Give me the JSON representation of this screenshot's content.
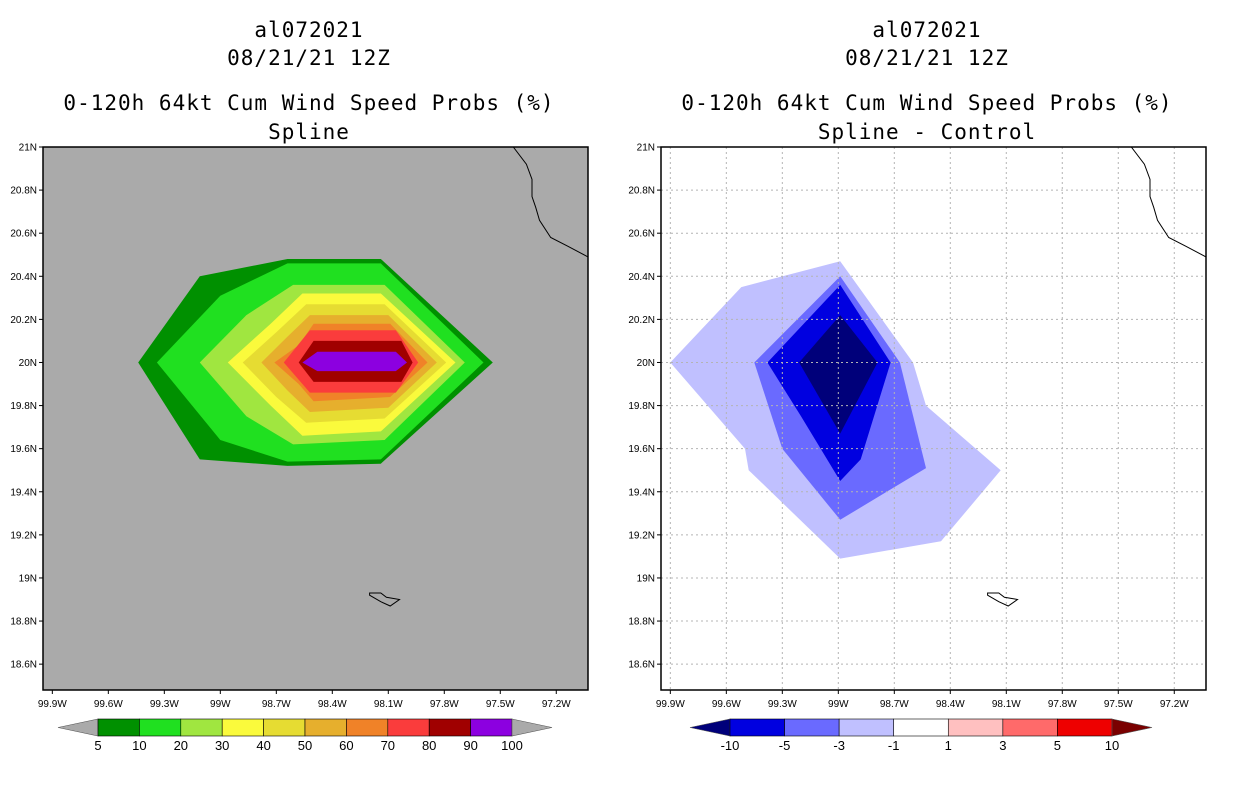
{
  "panels": [
    {
      "id": "left",
      "titles": [
        "al072021",
        "08/21/21 12Z",
        "0-120h 64kt Cum Wind Speed Probs (%)",
        "Spline"
      ],
      "background": "#aaaaaa",
      "colorbar": {
        "labels": [
          "5",
          "10",
          "20",
          "30",
          "40",
          "50",
          "60",
          "70",
          "80",
          "90",
          "100"
        ],
        "colors": [
          "#009000",
          "#20e020",
          "#a0e640",
          "#fafa3c",
          "#e6dc32",
          "#e6af2d",
          "#f08228",
          "#fa3c3c",
          "#a00000",
          "#8c00e0"
        ],
        "end_colors": [
          "#aaaaaa",
          "#aaaaaa"
        ]
      }
    },
    {
      "id": "right",
      "titles": [
        "al072021",
        "08/21/21 12Z",
        "0-120h 64kt Cum Wind Speed Probs (%)",
        "Spline - Control"
      ],
      "background": "#ffffff",
      "colorbar": {
        "labels": [
          "-10",
          "-5",
          "-3",
          "-1",
          "1",
          "3",
          "5",
          "10"
        ],
        "colors": [
          "#0000e0",
          "#6a6aff",
          "#c0c0ff",
          "#ffffff",
          "#ffc0c0",
          "#ff6a6a",
          "#ee0000"
        ],
        "end_colors": [
          "#00007a",
          "#7a0000"
        ]
      }
    }
  ],
  "map_axes": {
    "x_ticks": [
      "99.9W",
      "99.6W",
      "99.3W",
      "99W",
      "98.7W",
      "98.4W",
      "98.1W",
      "97.8W",
      "97.5W",
      "97.2W"
    ],
    "y_ticks": [
      "21N",
      "20.8N",
      "20.6N",
      "20.4N",
      "20.2N",
      "20N",
      "19.8N",
      "19.6N",
      "19.4N",
      "19.2N",
      "19N",
      "18.8N",
      "18.6N"
    ]
  },
  "chart_data": [
    {
      "type": "contour",
      "title": "0-120h 64kt Cum Wind Speed Probs (%) Spline",
      "storm": "al072021",
      "valid": "08/21/21 12Z",
      "xlim": [
        -99.95,
        -97.03
      ],
      "ylim": [
        18.48,
        21.0
      ],
      "levels": [
        5,
        10,
        20,
        30,
        40,
        50,
        60,
        70,
        80,
        90,
        100
      ],
      "contour_polygons": [
        {
          "level": 5,
          "color": "#009000",
          "points": [
            [
              -99.44,
              20.0
            ],
            [
              -99.11,
              20.4
            ],
            [
              -98.64,
              20.48
            ],
            [
              -98.14,
              20.48
            ],
            [
              -97.54,
              20.0
            ],
            [
              -98.14,
              19.53
            ],
            [
              -98.64,
              19.52
            ],
            [
              -99.11,
              19.55
            ]
          ]
        },
        {
          "level": 10,
          "color": "#20e020",
          "points": [
            [
              -99.34,
              20.0
            ],
            [
              -99.0,
              20.31
            ],
            [
              -98.64,
              20.46
            ],
            [
              -98.14,
              20.46
            ],
            [
              -97.59,
              20.0
            ],
            [
              -98.14,
              19.55
            ],
            [
              -98.64,
              19.54
            ],
            [
              -99.0,
              19.64
            ]
          ]
        },
        {
          "level": 20,
          "color": "#a0e640",
          "points": [
            [
              -99.11,
              20.0
            ],
            [
              -98.86,
              20.22
            ],
            [
              -98.61,
              20.36
            ],
            [
              -98.12,
              20.36
            ],
            [
              -97.69,
              20.0
            ],
            [
              -98.12,
              19.64
            ],
            [
              -98.61,
              19.62
            ],
            [
              -98.86,
              19.75
            ]
          ]
        },
        {
          "level": 30,
          "color": "#fafa3c",
          "points": [
            [
              -98.96,
              20.0
            ],
            [
              -98.73,
              20.18
            ],
            [
              -98.56,
              20.32
            ],
            [
              -98.14,
              20.32
            ],
            [
              -97.74,
              20.0
            ],
            [
              -98.14,
              19.68
            ],
            [
              -98.56,
              19.66
            ],
            [
              -98.73,
              19.8
            ]
          ]
        },
        {
          "level": 40,
          "color": "#e6dc32",
          "points": [
            [
              -98.88,
              20.0
            ],
            [
              -98.7,
              20.14
            ],
            [
              -98.54,
              20.27
            ],
            [
              -98.12,
              20.27
            ],
            [
              -97.79,
              20.0
            ],
            [
              -98.12,
              19.74
            ],
            [
              -98.54,
              19.72
            ],
            [
              -98.7,
              19.84
            ]
          ]
        },
        {
          "level": 50,
          "color": "#e6af2d",
          "points": [
            [
              -98.78,
              20.0
            ],
            [
              -98.64,
              20.12
            ],
            [
              -98.52,
              20.22
            ],
            [
              -98.1,
              20.22
            ],
            [
              -97.84,
              20.0
            ],
            [
              -98.1,
              19.79
            ],
            [
              -98.52,
              19.77
            ],
            [
              -98.64,
              19.87
            ]
          ]
        },
        {
          "level": 60,
          "color": "#f08228",
          "points": [
            [
              -98.71,
              20.0
            ],
            [
              -98.58,
              20.08
            ],
            [
              -98.5,
              20.18
            ],
            [
              -98.09,
              20.18
            ],
            [
              -97.89,
              20.0
            ],
            [
              -98.09,
              19.84
            ],
            [
              -98.5,
              19.82
            ],
            [
              -98.58,
              19.9
            ]
          ]
        },
        {
          "level": 70,
          "color": "#fa3c3c",
          "points": [
            [
              -98.66,
              20.0
            ],
            [
              -98.52,
              20.15
            ],
            [
              -98.06,
              20.15
            ],
            [
              -97.94,
              20.0
            ],
            [
              -98.06,
              19.86
            ],
            [
              -98.52,
              19.86
            ]
          ]
        },
        {
          "level": 80,
          "color": "#a00000",
          "points": [
            [
              -98.58,
              20.0
            ],
            [
              -98.5,
              20.1
            ],
            [
              -98.03,
              20.1
            ],
            [
              -97.97,
              20.0
            ],
            [
              -98.03,
              19.91
            ],
            [
              -98.5,
              19.91
            ]
          ]
        },
        {
          "level": 90,
          "color": "#8c00e0",
          "points": [
            [
              -98.56,
              20.0
            ],
            [
              -98.48,
              20.05
            ],
            [
              -98.06,
              20.05
            ],
            [
              -98.0,
              20.0
            ],
            [
              -98.06,
              19.96
            ],
            [
              -98.48,
              19.96
            ]
          ]
        }
      ]
    },
    {
      "type": "contour",
      "title": "0-120h 64kt Cum Wind Speed Probs (%) Spline - Control",
      "storm": "al072021",
      "valid": "08/21/21 12Z",
      "xlim": [
        -99.95,
        -97.03
      ],
      "ylim": [
        18.48,
        21.0
      ],
      "levels": [
        -10,
        -5,
        -3,
        -1,
        1,
        3,
        5,
        10
      ],
      "grid": true,
      "contour_polygons": [
        {
          "level": -1,
          "color": "#c0c0ff",
          "points": [
            [
              -99.9,
              20.0
            ],
            [
              -99.52,
              20.35
            ],
            [
              -98.99,
              20.47
            ],
            [
              -98.6,
              20.0
            ],
            [
              -98.53,
              19.8
            ],
            [
              -98.13,
              19.5
            ],
            [
              -98.45,
              19.17
            ],
            [
              -98.99,
              19.09
            ],
            [
              -99.48,
              19.5
            ],
            [
              -99.5,
              19.6
            ]
          ]
        },
        {
          "level": -3,
          "color": "#6a6aff",
          "points": [
            [
              -99.45,
              20.0
            ],
            [
              -98.99,
              20.4
            ],
            [
              -98.67,
              20.0
            ],
            [
              -98.53,
              19.51
            ],
            [
              -98.99,
              19.27
            ],
            [
              -99.3,
              19.6
            ]
          ]
        },
        {
          "level": -5,
          "color": "#0000e0",
          "points": [
            [
              -99.38,
              20.0
            ],
            [
              -98.99,
              20.36
            ],
            [
              -98.72,
              20.0
            ],
            [
              -98.88,
              19.55
            ],
            [
              -98.99,
              19.45
            ],
            [
              -99.2,
              19.75
            ]
          ]
        },
        {
          "level": -10,
          "color": "#00007a",
          "points": [
            [
              -99.21,
              20.0
            ],
            [
              -98.99,
              20.22
            ],
            [
              -98.79,
              20.0
            ],
            [
              -98.99,
              19.67
            ]
          ]
        }
      ]
    }
  ],
  "map_features": {
    "coastline": [
      [
        -97.43,
        21.0
      ],
      [
        -97.36,
        20.92
      ],
      [
        -97.33,
        20.85
      ],
      [
        -97.33,
        20.77
      ],
      [
        -97.31,
        20.72
      ],
      [
        -97.29,
        20.66
      ],
      [
        -97.23,
        20.58
      ],
      [
        -97.14,
        20.54
      ],
      [
        -97.03,
        20.49
      ]
    ],
    "island": [
      [
        -98.2,
        18.93
      ],
      [
        -98.14,
        18.93
      ],
      [
        -98.11,
        18.91
      ],
      [
        -98.04,
        18.9
      ],
      [
        -98.09,
        18.87
      ],
      [
        -98.14,
        18.89
      ],
      [
        -98.2,
        18.92
      ]
    ]
  }
}
